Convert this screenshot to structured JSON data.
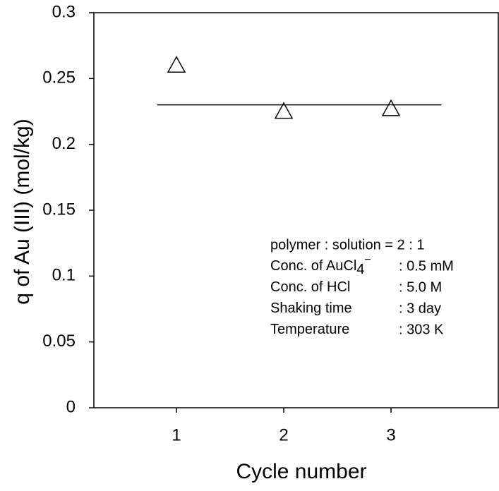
{
  "chart_data": {
    "type": "scatter",
    "x_label": "Cycle number",
    "y_label": "q of Au (III) (mol/kg)",
    "x": [
      1,
      2,
      3
    ],
    "values": [
      0.26,
      0.225,
      0.227
    ],
    "marker": "open-triangle",
    "color": "#000000",
    "xlim": [
      0.23,
      4
    ],
    "ylim": [
      0,
      0.3
    ],
    "xticks": [
      1,
      2,
      3
    ],
    "yticks": [
      0,
      0.05,
      0.1,
      0.15,
      0.2,
      0.25,
      0.3
    ],
    "mean_line": {
      "value": 0.23,
      "x": [
        0.82,
        3.47
      ]
    },
    "annotations": [
      {
        "text": "polymer : solution = 2 : 1"
      },
      {
        "label": "Conc. of AuCl",
        "sub": "4",
        "sup": "−",
        "value": ": 0.5 mM"
      },
      {
        "label": "Conc. of HCl",
        "value": ": 5.0 M"
      },
      {
        "label": "Shaking time",
        "value": ": 3 day"
      },
      {
        "label": "Temperature",
        "value": ": 303 K"
      }
    ]
  }
}
